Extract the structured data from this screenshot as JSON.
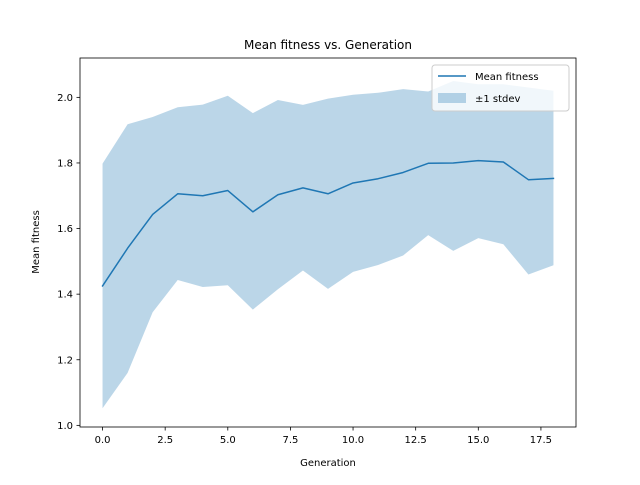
{
  "chart_data": {
    "type": "line",
    "title": "Mean fitness vs. Generation",
    "xlabel": "Generation",
    "ylabel": "Mean fitness",
    "xlim": [
      -0.9,
      18.9
    ],
    "ylim": [
      0.995,
      2.12
    ],
    "xticks": [
      0.0,
      2.5,
      5.0,
      7.5,
      10.0,
      12.5,
      15.0,
      17.5
    ],
    "xtick_labels": [
      "0.0",
      "2.5",
      "5.0",
      "7.5",
      "10.0",
      "12.5",
      "15.0",
      "17.5"
    ],
    "yticks": [
      1.0,
      1.2,
      1.4,
      1.6,
      1.8,
      2.0
    ],
    "ytick_labels": [
      "1.0",
      "1.2",
      "1.4",
      "1.6",
      "1.8",
      "2.0"
    ],
    "x": [
      0,
      1,
      2,
      3,
      4,
      5,
      6,
      7,
      8,
      9,
      10,
      11,
      12,
      13,
      14,
      15,
      16,
      17,
      18
    ],
    "series": [
      {
        "name": "Mean fitness",
        "color": "#1f77b4",
        "values": [
          1.425,
          1.54,
          1.643,
          1.706,
          1.7,
          1.716,
          1.651,
          1.703,
          1.724,
          1.706,
          1.739,
          1.752,
          1.771,
          1.799,
          1.8,
          1.807,
          1.803,
          1.749,
          1.753
        ]
      }
    ],
    "band": {
      "name": "±1 stdev",
      "color": "#1f77b4",
      "opacity": 0.3,
      "lower": [
        1.052,
        1.16,
        1.345,
        1.443,
        1.422,
        1.427,
        1.353,
        1.415,
        1.472,
        1.416,
        1.468,
        1.489,
        1.518,
        1.58,
        1.532,
        1.571,
        1.552,
        1.46,
        1.488
      ],
      "upper": [
        1.798,
        1.918,
        1.94,
        1.97,
        1.978,
        2.005,
        1.952,
        1.992,
        1.977,
        1.996,
        2.008,
        2.014,
        2.025,
        2.018,
        2.05,
        2.04,
        2.04,
        2.03,
        2.02
      ]
    },
    "legend": {
      "placement": "top-right",
      "entries": [
        "Mean fitness",
        "±1 stdev"
      ]
    },
    "grid": false
  }
}
